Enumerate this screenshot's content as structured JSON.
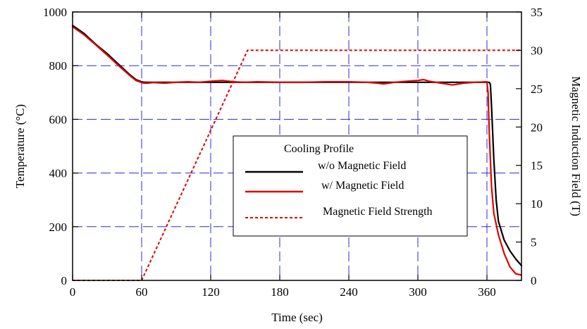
{
  "chart_data": {
    "type": "line",
    "xlabel": "Time (sec)",
    "ylabel": "Temperature (°C)",
    "y2label": "Magnetic Induction Field (T)",
    "xlim": [
      0,
      390
    ],
    "ylim": [
      0,
      1000
    ],
    "y2lim": [
      0,
      35
    ],
    "x_ticks": [
      0,
      60,
      120,
      180,
      240,
      300,
      360
    ],
    "y_ticks": [
      0,
      200,
      400,
      600,
      800,
      1000
    ],
    "y2_ticks": [
      0,
      5,
      10,
      15,
      20,
      25,
      30,
      35
    ],
    "grid": true,
    "legend": {
      "title": "Cooling Profile",
      "placement": "center-right"
    },
    "series": [
      {
        "name": "w/o Magnetic Field",
        "axis": "left",
        "color": "#000000",
        "style": "solid",
        "x": [
          0,
          10,
          20,
          30,
          40,
          50,
          55,
          60,
          62,
          64,
          70,
          80,
          100,
          120,
          140,
          160,
          180,
          200,
          220,
          240,
          260,
          280,
          300,
          320,
          340,
          355,
          360,
          362,
          363,
          364,
          366,
          368,
          370,
          375,
          380,
          385,
          390
        ],
        "y": [
          950,
          920,
          880,
          845,
          805,
          765,
          748,
          740,
          738,
          738,
          738,
          738,
          738,
          738,
          738,
          738,
          738,
          738,
          738,
          738,
          738,
          738,
          738,
          738,
          738,
          738,
          738,
          738,
          730,
          650,
          450,
          300,
          220,
          150,
          110,
          80,
          55
        ]
      },
      {
        "name": "w/ Magnetic Field",
        "axis": "left",
        "color": "#e00000",
        "style": "solid",
        "x": [
          0,
          10,
          20,
          30,
          40,
          50,
          55,
          60,
          62,
          65,
          70,
          80,
          90,
          100,
          110,
          120,
          130,
          140,
          150,
          160,
          180,
          200,
          220,
          240,
          255,
          265,
          270,
          280,
          290,
          300,
          305,
          310,
          320,
          330,
          340,
          350,
          360,
          361,
          362,
          364,
          366,
          370,
          375,
          380,
          385,
          390
        ],
        "y": [
          945,
          915,
          878,
          840,
          800,
          762,
          745,
          737,
          735,
          735,
          737,
          735,
          738,
          740,
          738,
          742,
          745,
          740,
          738,
          740,
          738,
          738,
          740,
          740,
          738,
          735,
          732,
          738,
          742,
          745,
          748,
          742,
          735,
          728,
          735,
          738,
          740,
          700,
          550,
          350,
          250,
          170,
          100,
          50,
          25,
          20
        ]
      },
      {
        "name": "Magnetic Field Strength",
        "axis": "right",
        "color": "#e00000",
        "style": "dashed",
        "x": [
          0,
          60,
          152,
          390
        ],
        "y": [
          0,
          0,
          30,
          30
        ]
      }
    ]
  }
}
